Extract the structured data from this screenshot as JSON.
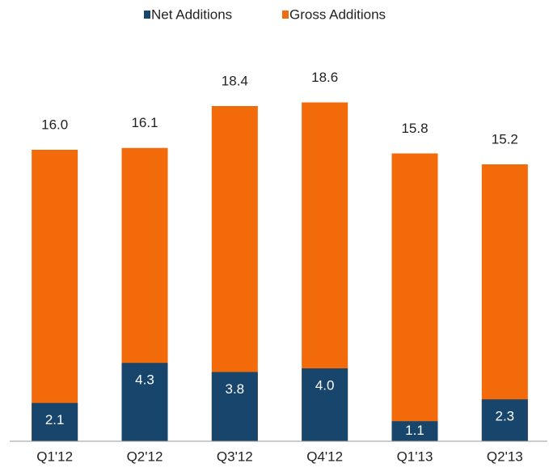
{
  "chart_data": {
    "type": "bar",
    "overlap": true,
    "categories": [
      "Q1'12",
      "Q2'12",
      "Q3'12",
      "Q4'12",
      "Q1'13",
      "Q2'13"
    ],
    "series": [
      {
        "name": "Gross Additions",
        "color": "#f26a0a",
        "values": [
          16.0,
          16.1,
          18.4,
          18.6,
          15.8,
          15.2
        ],
        "value_labels": [
          "16.0",
          "16.1",
          "18.4",
          "18.6",
          "15.8",
          "15.2"
        ]
      },
      {
        "name": "Net Additions",
        "color": "#17456b",
        "values": [
          2.1,
          4.3,
          3.8,
          4.0,
          1.1,
          2.3
        ],
        "value_labels": [
          "2.1",
          "4.3",
          "3.8",
          "4.0",
          "1.1",
          "2.3"
        ]
      }
    ],
    "ylim": [
      0,
      20
    ],
    "legend": "top"
  }
}
